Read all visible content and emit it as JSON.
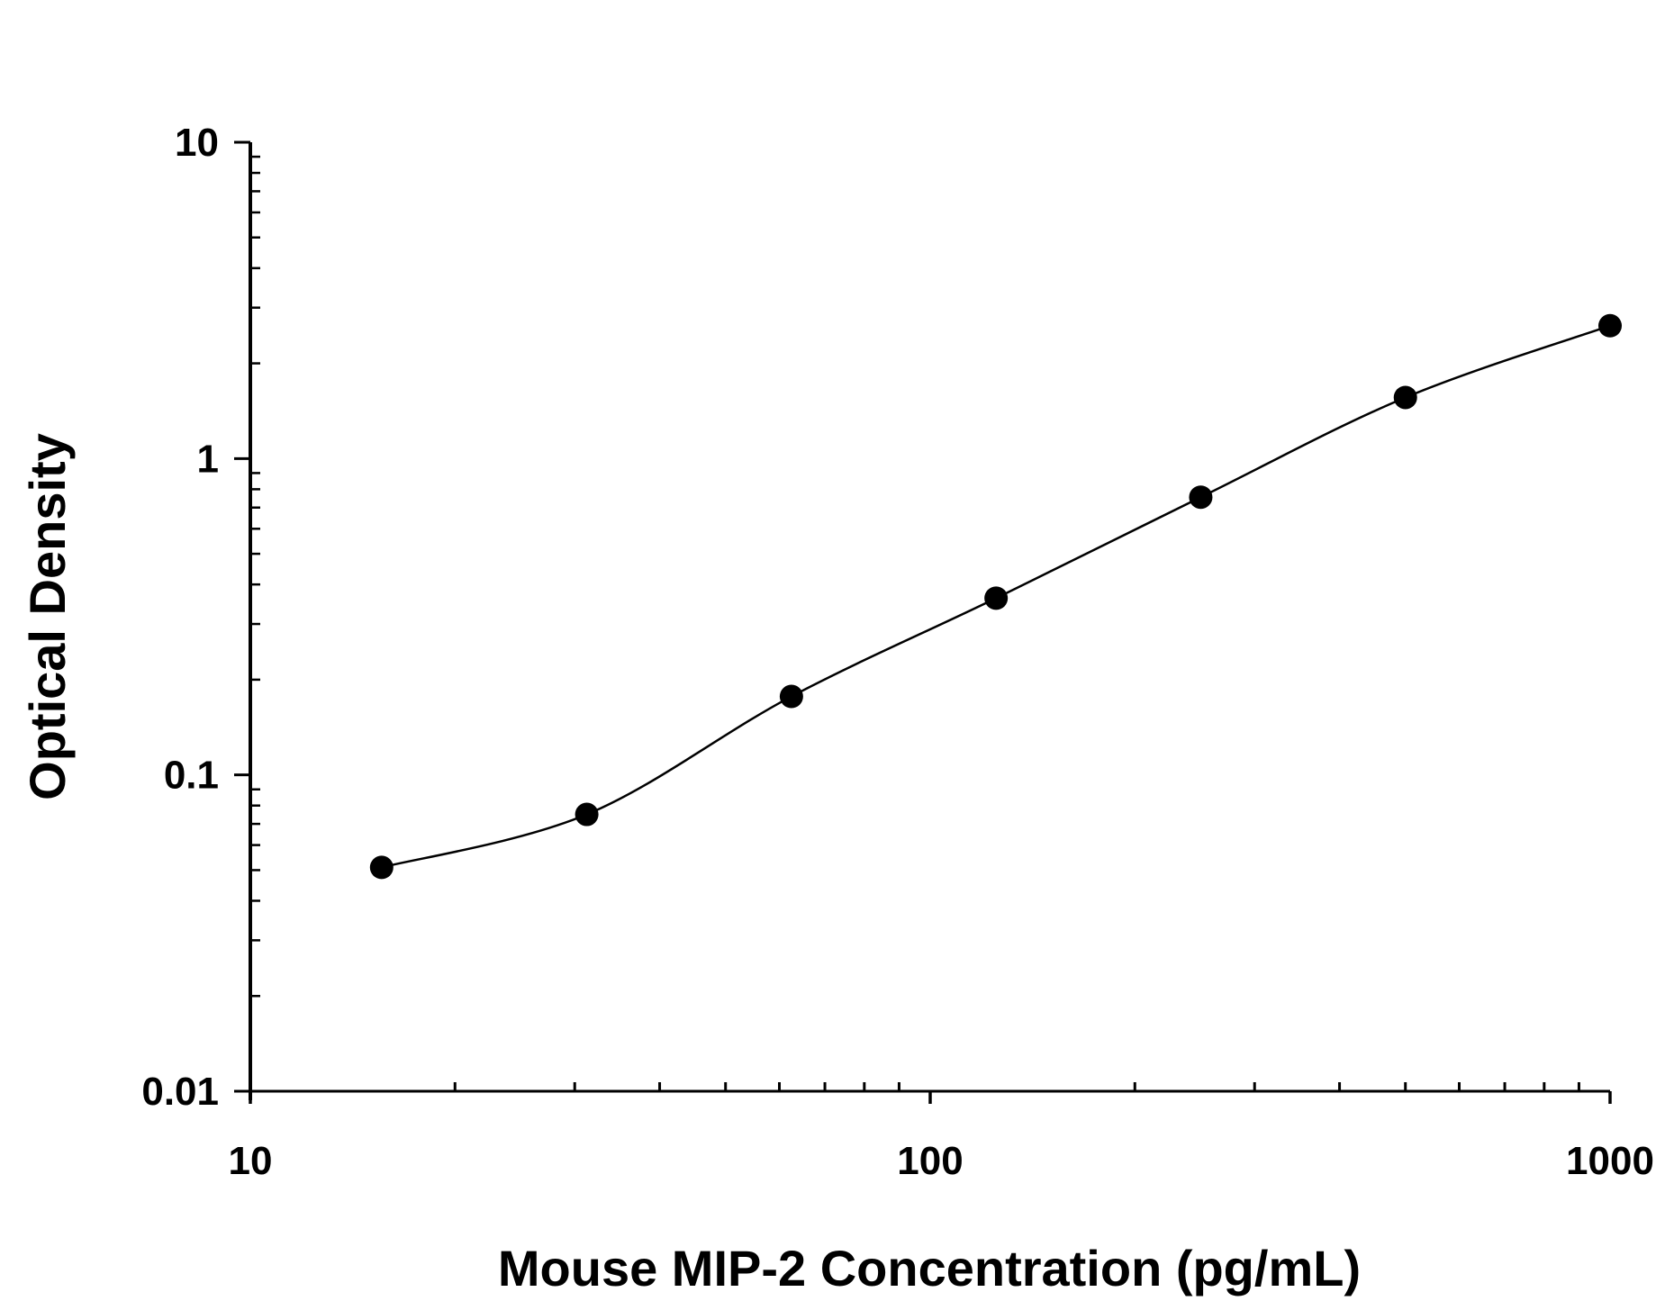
{
  "chart_data": {
    "type": "scatter",
    "title": "",
    "xlabel": "Mouse MIP-2 Concentration (pg/mL)",
    "ylabel": "Optical Density",
    "xscale": "log",
    "yscale": "log",
    "xlim": [
      10,
      1000
    ],
    "ylim": [
      0.01,
      10
    ],
    "xticks": [
      "10",
      "100",
      "1000"
    ],
    "yticks": [
      "0.01",
      "0.1",
      "1",
      "10"
    ],
    "grid": false,
    "legend": "none",
    "marker_color": "#000000",
    "fit_curve": true,
    "series": [
      {
        "x": [
          15.6,
          31.25,
          62.5,
          125,
          250,
          500,
          1000
        ],
        "y": [
          0.051,
          0.075,
          0.177,
          0.362,
          0.755,
          1.56,
          2.63
        ]
      }
    ]
  }
}
